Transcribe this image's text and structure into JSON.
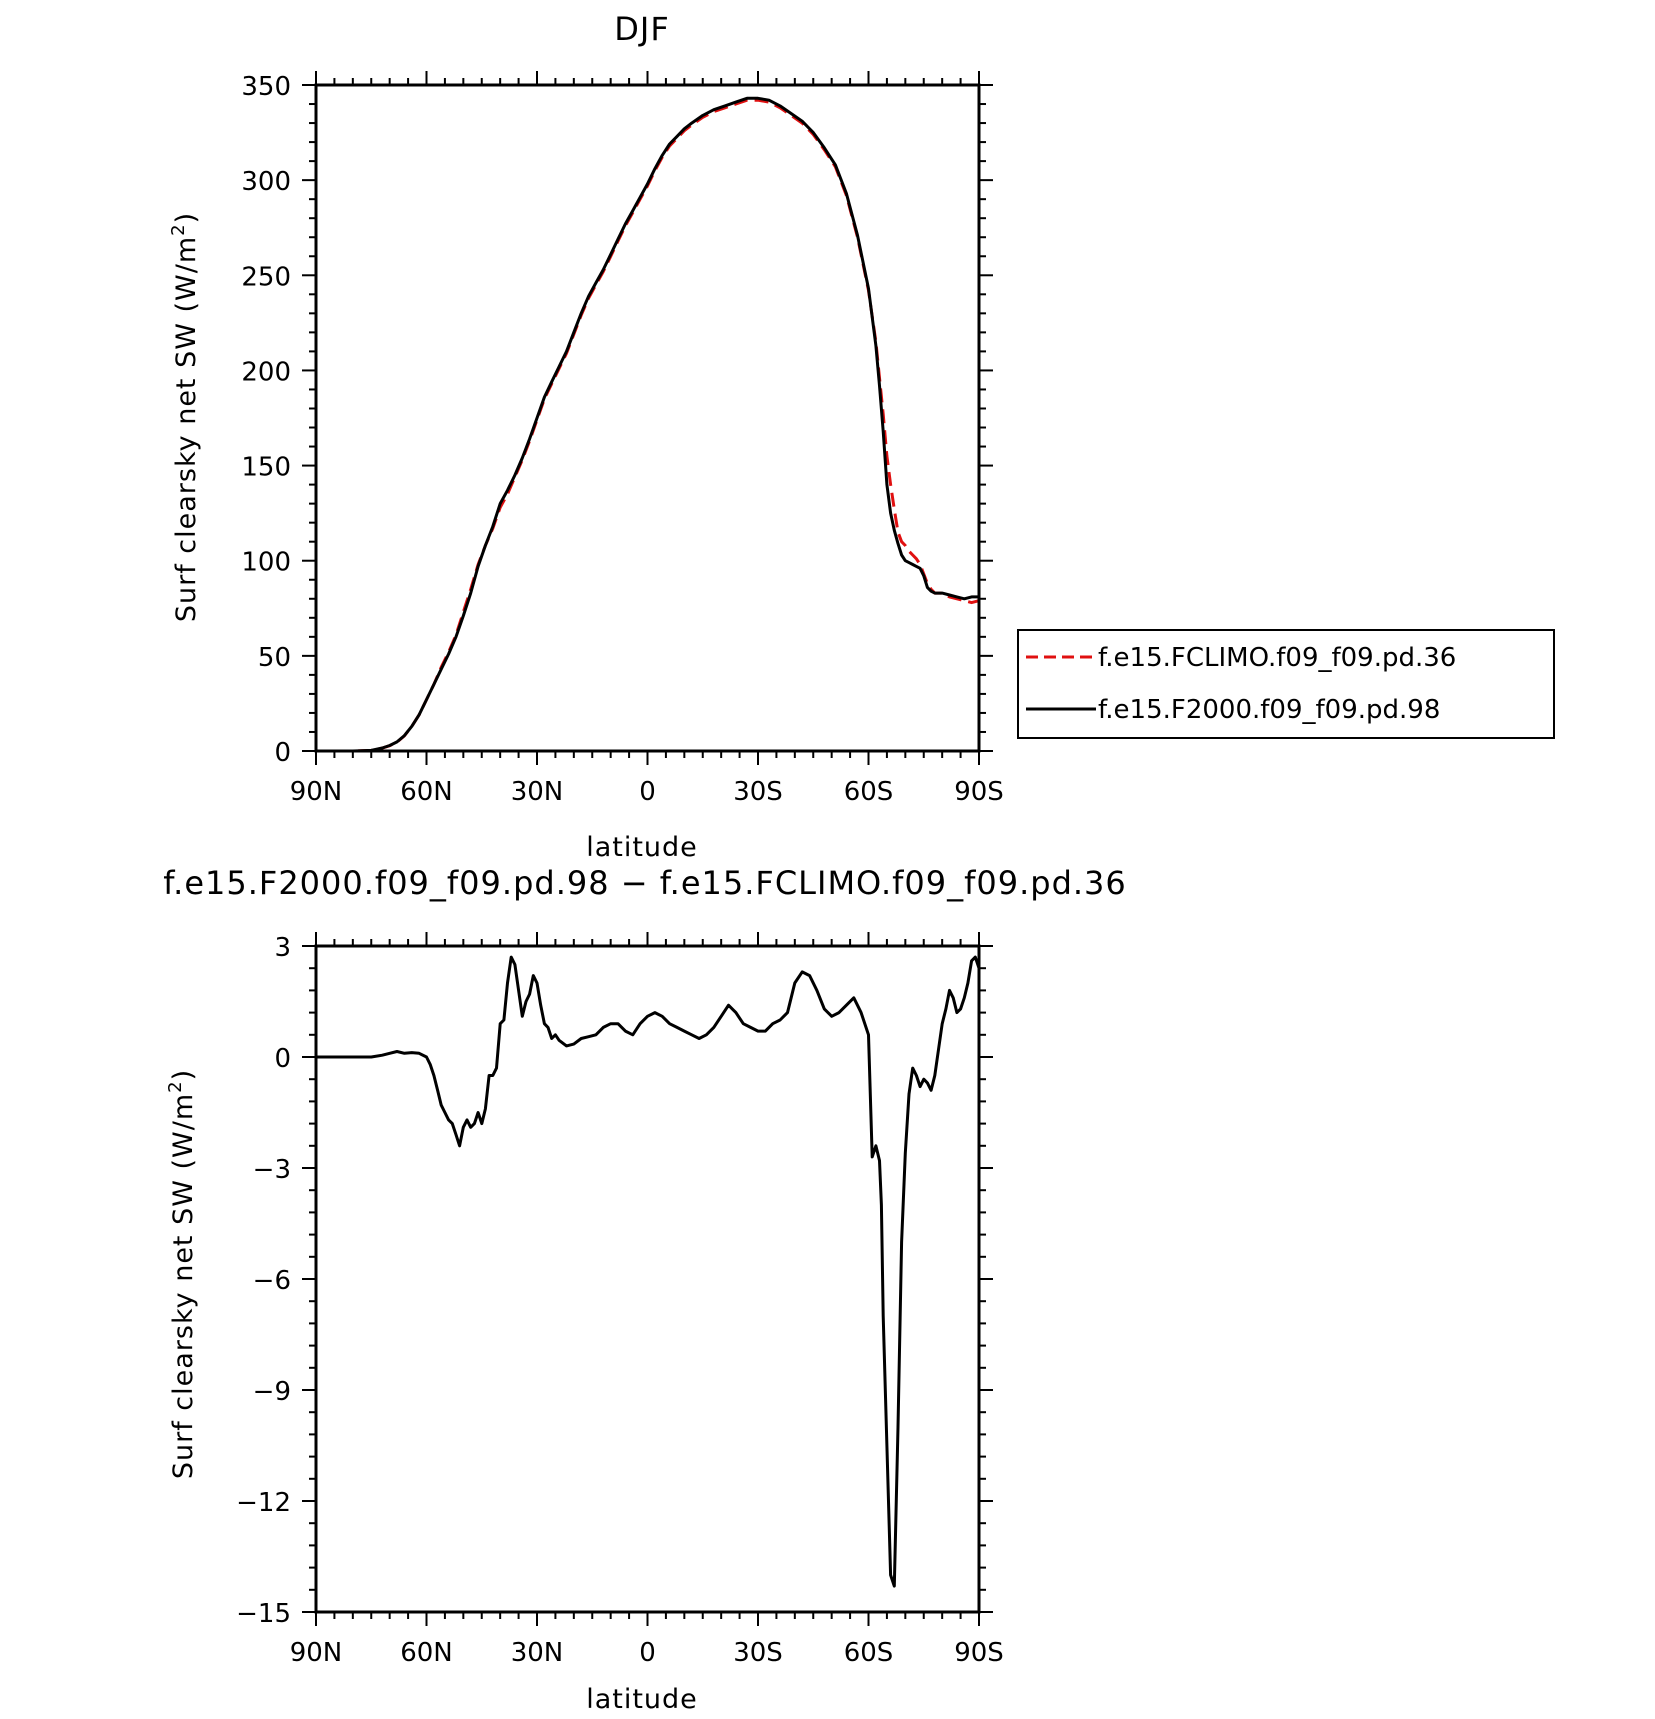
{
  "chart_data": [
    {
      "type": "line",
      "title": "DJF",
      "xlabel": "latitude",
      "ylabel": "Surf clearsky net SW (W/m²)",
      "ylabel_parts": [
        "Surf clearsky net SW (W/m",
        "2",
        ")"
      ],
      "xlim": [
        90,
        -90
      ],
      "ylim": [
        0,
        350
      ],
      "x_ticks": [
        90,
        60,
        30,
        0,
        -30,
        -60,
        -90
      ],
      "x_tick_labels": [
        "90N",
        "60N",
        "30N",
        "0",
        "30S",
        "60S",
        "90S"
      ],
      "y_ticks": [
        0,
        50,
        100,
        150,
        200,
        250,
        300,
        350
      ],
      "y_tick_labels": [
        "0",
        "50",
        "100",
        "150",
        "200",
        "250",
        "300",
        "350"
      ],
      "grid": false,
      "legend_position": "right",
      "series": [
        {
          "name": "f.e15.FCLIMO.f09_f09.pd.36",
          "color": "#e01010",
          "dash": "dashed",
          "x": [
            90,
            85,
            80,
            75,
            72,
            70,
            68,
            66,
            64,
            62,
            60,
            58,
            56,
            54,
            52,
            50,
            48,
            46,
            44,
            42,
            40,
            38,
            36,
            34,
            32,
            30,
            28,
            26,
            24,
            22,
            20,
            18,
            16,
            14,
            12,
            10,
            8,
            6,
            4,
            2,
            0,
            -2,
            -4,
            -6,
            -8,
            -10,
            -12,
            -15,
            -18,
            -21,
            -24,
            -27,
            -30,
            -33,
            -36,
            -39,
            -42,
            -45,
            -48,
            -51,
            -54,
            -57,
            -60,
            -62,
            -63,
            -64,
            -65,
            -66,
            -67,
            -68,
            -69,
            -70,
            -71,
            -72,
            -73,
            -74,
            -75,
            -76,
            -77,
            -78,
            -80,
            -82,
            -84,
            -86,
            -88,
            -90
          ],
          "y": [
            0,
            0,
            0,
            0.3,
            1.5,
            2.8,
            4.7,
            8,
            13,
            19,
            27,
            35,
            44,
            52,
            61,
            73,
            85,
            98,
            108,
            117,
            128,
            135,
            144,
            153,
            163,
            174,
            185,
            193,
            201,
            209,
            219,
            229,
            238,
            245,
            252,
            260,
            268,
            276,
            283,
            290,
            297,
            305,
            312,
            318,
            322,
            326,
            329,
            333,
            336,
            338,
            340,
            342,
            342,
            341,
            338,
            334,
            330,
            324,
            316,
            307,
            292,
            270,
            242,
            215,
            196,
            177,
            155,
            140,
            127,
            115,
            110,
            108,
            105,
            103,
            101,
            98,
            93,
            88,
            85,
            83,
            83,
            81,
            80,
            79,
            78,
            79
          ]
        },
        {
          "name": "f.e15.F2000.f09_f09.pd.98",
          "color": "#000000",
          "dash": "solid",
          "x": [
            90,
            85,
            80,
            75,
            72,
            70,
            68,
            66,
            64,
            62,
            60,
            58,
            56,
            54,
            52,
            50,
            48,
            46,
            44,
            42,
            40,
            38,
            36,
            34,
            32,
            30,
            28,
            26,
            24,
            22,
            20,
            18,
            16,
            14,
            12,
            10,
            8,
            6,
            4,
            2,
            0,
            -2,
            -4,
            -6,
            -8,
            -10,
            -12,
            -15,
            -18,
            -21,
            -24,
            -27,
            -30,
            -33,
            -36,
            -39,
            -42,
            -45,
            -48,
            -51,
            -54,
            -57,
            -60,
            -62,
            -63,
            -64,
            -65,
            -66,
            -67,
            -68,
            -69,
            -70,
            -71,
            -72,
            -73,
            -74,
            -75,
            -76,
            -77,
            -78,
            -80,
            -82,
            -84,
            -86,
            -88,
            -90
          ],
          "y": [
            0,
            0,
            0,
            0.3,
            1.6,
            2.9,
            4.8,
            8.1,
            13,
            19,
            27,
            35,
            43,
            51,
            60,
            71,
            83,
            97,
            108,
            118,
            130,
            137,
            145,
            154,
            164,
            175,
            186,
            194,
            202,
            210,
            220,
            230,
            239,
            246,
            253,
            261,
            269,
            277,
            284,
            291,
            298,
            306,
            313,
            319,
            323,
            327,
            330,
            334,
            337,
            339,
            341,
            343,
            343,
            342,
            339,
            335,
            331,
            325,
            317,
            308,
            293,
            271,
            243,
            213,
            192,
            168,
            140,
            125,
            116,
            109,
            103,
            100,
            99,
            98,
            97,
            96,
            92,
            86,
            84,
            83,
            83,
            82,
            81,
            80,
            81,
            81
          ]
        }
      ]
    },
    {
      "type": "line",
      "title": "f.e15.F2000.f09_f09.pd.98 − f.e15.FCLIMO.f09_f09.pd.36",
      "xlabel": "latitude",
      "ylabel": "Surf clearsky net SW (W/m²)",
      "ylabel_parts": [
        "Surf clearsky net SW (W/m",
        "2",
        ")"
      ],
      "xlim": [
        90,
        -90
      ],
      "ylim": [
        -15,
        3
      ],
      "x_ticks": [
        90,
        60,
        30,
        0,
        -30,
        -60,
        -90
      ],
      "x_tick_labels": [
        "90N",
        "60N",
        "30N",
        "0",
        "30S",
        "60S",
        "90S"
      ],
      "y_ticks": [
        3,
        0,
        -3,
        -6,
        -9,
        -12,
        -15
      ],
      "y_tick_labels": [
        "3",
        "0",
        "−3",
        "−6",
        "−9",
        "−12",
        "−15"
      ],
      "grid": false,
      "series": [
        {
          "color": "#000000",
          "dash": "solid",
          "x": [
            90,
            85,
            80,
            75,
            72,
            70,
            68,
            66,
            64,
            62,
            60,
            59,
            58,
            57,
            56,
            55,
            54,
            53,
            52,
            51,
            50,
            49,
            48,
            47,
            46,
            45,
            44,
            43,
            42,
            41,
            40,
            39,
            38,
            37,
            36,
            35,
            34,
            33,
            32,
            31,
            30,
            29,
            28,
            27,
            26,
            25,
            24,
            22,
            20,
            18,
            16,
            14,
            12,
            10,
            8,
            6,
            4,
            2,
            0,
            -2,
            -4,
            -6,
            -8,
            -10,
            -12,
            -14,
            -16,
            -18,
            -20,
            -22,
            -24,
            -26,
            -28,
            -30,
            -32,
            -34,
            -36,
            -38,
            -40,
            -42,
            -44,
            -46,
            -48,
            -50,
            -52,
            -54,
            -56,
            -58,
            -60,
            -61,
            -62,
            -63,
            -63.5,
            -64,
            -65,
            -66,
            -67,
            -68,
            -69,
            -70,
            -71,
            -72,
            -73,
            -74,
            -75,
            -76,
            -77,
            -78,
            -79,
            -80,
            -81,
            -82,
            -83,
            -84,
            -85,
            -86,
            -87,
            -88,
            -89,
            -90
          ],
          "y": [
            0,
            0,
            0,
            0,
            0.05,
            0.1,
            0.15,
            0.1,
            0.12,
            0.1,
            0,
            -0.2,
            -0.5,
            -0.9,
            -1.3,
            -1.5,
            -1.7,
            -1.8,
            -2.1,
            -2.4,
            -1.9,
            -1.7,
            -1.9,
            -1.8,
            -1.5,
            -1.8,
            -1.4,
            -0.5,
            -0.5,
            -0.3,
            0.9,
            1.0,
            2.0,
            2.7,
            2.5,
            1.8,
            1.1,
            1.5,
            1.7,
            2.2,
            2.0,
            1.4,
            0.9,
            0.8,
            0.5,
            0.6,
            0.45,
            0.3,
            0.35,
            0.5,
            0.55,
            0.6,
            0.8,
            0.9,
            0.9,
            0.7,
            0.6,
            0.9,
            1.1,
            1.2,
            1.1,
            0.9,
            0.8,
            0.7,
            0.6,
            0.5,
            0.6,
            0.8,
            1.1,
            1.4,
            1.2,
            0.9,
            0.8,
            0.7,
            0.7,
            0.9,
            1.0,
            1.2,
            2.0,
            2.3,
            2.2,
            1.8,
            1.3,
            1.1,
            1.2,
            1.4,
            1.6,
            1.2,
            0.6,
            -2.7,
            -2.4,
            -2.8,
            -4.0,
            -7.0,
            -10.5,
            -14.0,
            -14.3,
            -10.0,
            -5.0,
            -2.6,
            -1.0,
            -0.3,
            -0.5,
            -0.8,
            -0.6,
            -0.7,
            -0.9,
            -0.5,
            0.2,
            0.9,
            1.3,
            1.8,
            1.6,
            1.2,
            1.3,
            1.6,
            2.0,
            2.6,
            2.7,
            2.4
          ]
        }
      ]
    }
  ]
}
